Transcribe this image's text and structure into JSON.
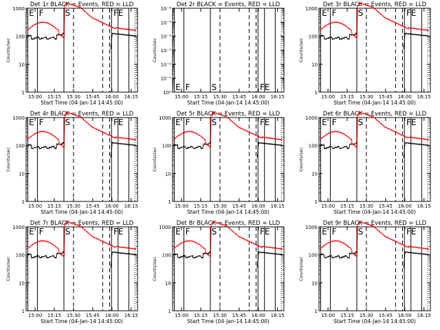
{
  "chart_data": [
    {
      "type": "line",
      "title": "Det 1r BLACK = Events, RED = LLD",
      "ylabel": "Counts/sec",
      "xlabel": "Start Time (04-Jan-14 14:45:00)",
      "yscale": "log",
      "ylim": [
        1,
        1000
      ],
      "yticks": [
        "1",
        "10",
        "100",
        "1000"
      ],
      "xlim": [
        14.883,
        16.333
      ],
      "xticks": [
        "15:00",
        "15:15",
        "15:30",
        "15:45",
        "16:00",
        "16:15"
      ],
      "event_markers": [
        "E",
        "F",
        "S",
        "FE"
      ],
      "series": [
        {
          "name": "BLACK = Events",
          "color": "#000000"
        },
        {
          "name": "RED = LLD",
          "color": "#ff0000"
        }
      ]
    },
    {
      "type": "line",
      "title": "Det 2r BLACK = Events, RED = LLD",
      "ylabel": "Counts/sec",
      "xlabel": "Start Time (04-Jan-14 14:45:00)",
      "yscale": "log",
      "ylim": [
        1,
        1e-06
      ],
      "yticks": [
        "10⁰",
        "10⁻¹",
        "10⁻²",
        "10⁻³",
        "10⁻⁴",
        "10⁻⁵",
        "10⁻⁶"
      ],
      "xlim": [
        14.883,
        16.333
      ],
      "xticks": [
        "15:00",
        "15:15",
        "15:30",
        "15:45",
        "16:00",
        "16:15"
      ],
      "event_markers": [
        "E",
        "F",
        "S",
        "FE"
      ],
      "series": []
    },
    {
      "type": "line",
      "title": "Det 3r BLACK = Events, RED = LLD",
      "ylabel": "Counts/sec",
      "xlabel": "Start Time (04-Jan-14 14:45:00)",
      "yscale": "log",
      "ylim": [
        1,
        1000
      ],
      "yticks": [
        "1",
        "10",
        "100",
        "1000"
      ],
      "xlim": [
        14.883,
        16.333
      ],
      "xticks": [
        "15:00",
        "15:15",
        "15:30",
        "15:45",
        "16:00",
        "16:15"
      ],
      "event_markers": [
        "E",
        "F",
        "S",
        "FE"
      ],
      "series": [
        {
          "name": "BLACK = Events",
          "color": "#000000"
        },
        {
          "name": "RED = LLD",
          "color": "#ff0000"
        }
      ]
    },
    {
      "type": "line",
      "title": "Det 4r BLACK = Events, RED = LLD",
      "ylabel": "Counts/sec",
      "xlabel": "Start Time (04-Jan-14 14:45:00)",
      "yscale": "log",
      "ylim": [
        1,
        1000
      ],
      "yticks": [
        "1",
        "10",
        "100",
        "1000"
      ],
      "xlim": [
        14.883,
        16.333
      ],
      "xticks": [
        "15:00",
        "15:15",
        "15:30",
        "15:45",
        "16:00",
        "16:15"
      ],
      "event_markers": [
        "E",
        "F",
        "S",
        "FE"
      ],
      "series": [
        {
          "name": "BLACK = Events",
          "color": "#000000"
        },
        {
          "name": "RED = LLD",
          "color": "#ff0000"
        }
      ]
    },
    {
      "type": "line",
      "title": "Det 5r BLACK = Events, RED = LLD",
      "ylabel": "Counts/sec",
      "xlabel": "Start Time (04-Jan-14 14:45:00)",
      "yscale": "log",
      "ylim": [
        1,
        1000
      ],
      "yticks": [
        "1",
        "10",
        "100",
        "1000"
      ],
      "xlim": [
        14.883,
        16.333
      ],
      "xticks": [
        "15:00",
        "15:15",
        "15:30",
        "15:45",
        "16:00",
        "16:15"
      ],
      "event_markers": [
        "E",
        "F",
        "S",
        "FE"
      ],
      "series": [
        {
          "name": "BLACK = Events",
          "color": "#000000"
        },
        {
          "name": "RED = LLD",
          "color": "#ff0000"
        }
      ]
    },
    {
      "type": "line",
      "title": "Det 6r BLACK = Events, RED = LLD",
      "ylabel": "Counts/sec",
      "xlabel": "Start Time (04-Jan-14 14:45:00)",
      "yscale": "log",
      "ylim": [
        1,
        1000
      ],
      "yticks": [
        "1",
        "10",
        "100",
        "1000"
      ],
      "xlim": [
        14.883,
        16.333
      ],
      "xticks": [
        "15:00",
        "15:15",
        "15:30",
        "15:45",
        "16:00",
        "16:15"
      ],
      "event_markers": [
        "E",
        "F",
        "S",
        "FE"
      ],
      "series": [
        {
          "name": "BLACK = Events",
          "color": "#000000"
        },
        {
          "name": "RED = LLD",
          "color": "#ff0000"
        }
      ]
    },
    {
      "type": "line",
      "title": "Det 7r BLACK = Events, RED = LLD",
      "ylabel": "Counts/sec",
      "xlabel": "Start Time (04-Jan-14 14:45:00)",
      "yscale": "log",
      "ylim": [
        1,
        1000
      ],
      "yticks": [
        "1",
        "10",
        "100",
        "1000"
      ],
      "xlim": [
        14.883,
        16.333
      ],
      "xticks": [
        "15:00",
        "15:15",
        "15:30",
        "15:45",
        "16:00",
        "16:15"
      ],
      "event_markers": [
        "E",
        "F",
        "S",
        "FE"
      ],
      "series": [
        {
          "name": "BLACK = Events",
          "color": "#000000"
        },
        {
          "name": "RED = LLD",
          "color": "#ff0000"
        }
      ]
    },
    {
      "type": "line",
      "title": "Det 8r BLACK = Events, RED = LLD",
      "ylabel": "Counts/sec",
      "xlabel": "Start Time (04-Jan-14 14:45:00)",
      "yscale": "log",
      "ylim": [
        1,
        1000
      ],
      "yticks": [
        "1",
        "10",
        "100",
        "1000"
      ],
      "xlim": [
        14.883,
        16.333
      ],
      "xticks": [
        "15:00",
        "15:15",
        "15:30",
        "15:45",
        "16:00",
        "16:15"
      ],
      "event_markers": [
        "E",
        "F",
        "S",
        "FE"
      ],
      "series": [
        {
          "name": "BLACK = Events",
          "color": "#000000"
        },
        {
          "name": "RED = LLD",
          "color": "#ff0000"
        }
      ]
    },
    {
      "type": "line",
      "title": "Det 9r BLACK = Events, RED = LLD",
      "ylabel": "Counts/sec",
      "xlabel": "Start Time (04-Jan-14 14:45:00)",
      "yscale": "log",
      "ylim": [
        1,
        1000
      ],
      "yticks": [
        "1",
        "10",
        "100",
        "1000"
      ],
      "xlim": [
        14.883,
        16.333
      ],
      "xticks": [
        "15:00",
        "15:15",
        "15:30",
        "15:45",
        "16:00",
        "16:15"
      ],
      "event_markers": [
        "E",
        "F",
        "S",
        "FE"
      ],
      "series": [
        {
          "name": "BLACK = Events",
          "color": "#000000"
        },
        {
          "name": "RED = LLD",
          "color": "#ff0000"
        }
      ]
    }
  ]
}
